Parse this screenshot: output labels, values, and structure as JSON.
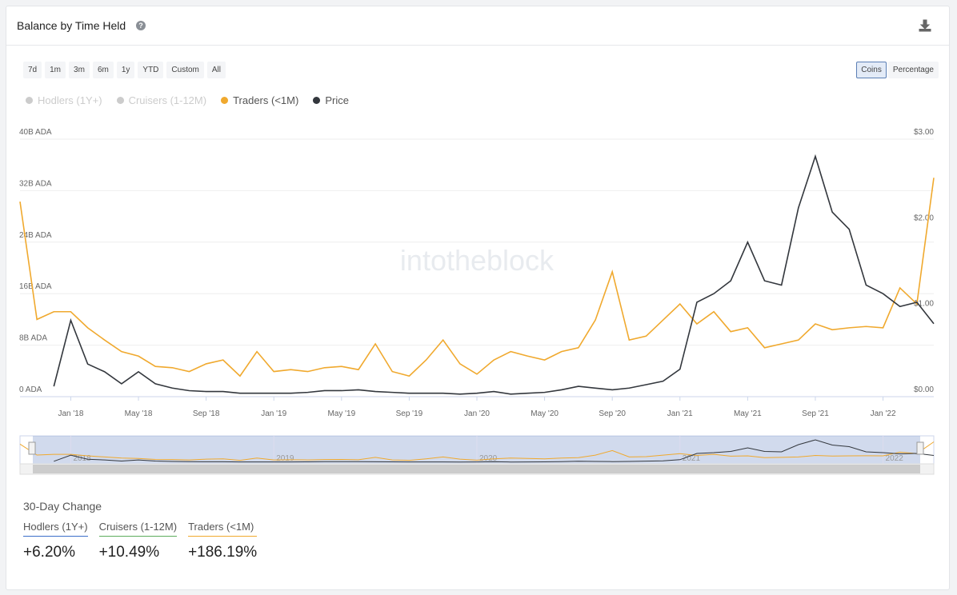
{
  "header": {
    "title": "Balance by Time Held"
  },
  "range_buttons": [
    "7d",
    "1m",
    "3m",
    "6m",
    "1y",
    "YTD",
    "Custom",
    "All"
  ],
  "unit_buttons": [
    "Coins",
    "Percentage"
  ],
  "watermark": "intotheblock",
  "chart_data": {
    "type": "line",
    "legend": [
      {
        "name": "Hodlers (1Y+)",
        "color": "#cccccc"
      },
      {
        "name": "Cruisers (1-12M)",
        "color": "#cccccc"
      }
    ],
    "x": [
      "2017-10",
      "2017-11",
      "2017-12",
      "2018-01",
      "2018-02",
      "2018-03",
      "2018-04",
      "2018-05",
      "2018-06",
      "2018-07",
      "2018-08",
      "2018-09",
      "2018-10",
      "2018-11",
      "2018-12",
      "2019-01",
      "2019-02",
      "2019-03",
      "2019-04",
      "2019-05",
      "2019-06",
      "2019-07",
      "2019-08",
      "2019-09",
      "2019-10",
      "2019-11",
      "2019-12",
      "2020-01",
      "2020-02",
      "2020-03",
      "2020-04",
      "2020-05",
      "2020-06",
      "2020-07",
      "2020-08",
      "2020-09",
      "2020-10",
      "2020-11",
      "2020-12",
      "2021-01",
      "2021-02",
      "2021-03",
      "2021-04",
      "2021-05",
      "2021-06",
      "2021-07",
      "2021-08",
      "2021-09",
      "2021-10",
      "2021-11",
      "2021-12",
      "2022-01",
      "2022-02",
      "2022-03",
      "2022-04"
    ],
    "xlim": [
      "2017-10",
      "2022-04"
    ],
    "xticks": [
      {
        "value": "2018-01",
        "label": "Jan '18"
      },
      {
        "value": "2018-05",
        "label": "May '18"
      },
      {
        "value": "2018-09",
        "label": "Sep '18"
      },
      {
        "value": "2019-01",
        "label": "Jan '19"
      },
      {
        "value": "2019-05",
        "label": "May '19"
      },
      {
        "value": "2019-09",
        "label": "Sep '19"
      },
      {
        "value": "2020-01",
        "label": "Jan '20"
      },
      {
        "value": "2020-05",
        "label": "May '20"
      },
      {
        "value": "2020-09",
        "label": "Sep '20"
      },
      {
        "value": "2021-01",
        "label": "Jan '21"
      },
      {
        "value": "2021-05",
        "label": "May '21"
      },
      {
        "value": "2021-09",
        "label": "Sep '21"
      },
      {
        "value": "2022-01",
        "label": "Jan '22"
      }
    ],
    "ylim": [
      0,
      40000000000
    ],
    "yticks": [
      {
        "value": 0,
        "label": "0 ADA"
      },
      {
        "value": 8000000000,
        "label": "8B ADA"
      },
      {
        "value": 16000000000,
        "label": "16B ADA"
      },
      {
        "value": 24000000000,
        "label": "24B ADA"
      },
      {
        "value": 32000000000,
        "label": "32B ADA"
      },
      {
        "value": 40000000000,
        "label": "40B ADA"
      }
    ],
    "y2lim": [
      0,
      3
    ],
    "y2ticks": [
      {
        "value": 0,
        "label": "$0.00"
      },
      {
        "value": 1,
        "label": "$1.00"
      },
      {
        "value": 2,
        "label": "$2.00"
      },
      {
        "value": 3,
        "label": "$3.00"
      }
    ],
    "grid": true,
    "series": [
      {
        "name": "Traders (<1M)",
        "color": "#f0a92e",
        "values": [
          30300000000,
          12000000000,
          13200000000,
          13200000000,
          10700000000,
          8800000000,
          7000000000,
          6300000000,
          4700000000,
          4500000000,
          3900000000,
          5100000000,
          5700000000,
          3200000000,
          7000000000,
          3900000000,
          4200000000,
          3900000000,
          4500000000,
          4700000000,
          4200000000,
          8200000000,
          3900000000,
          3200000000,
          5700000000,
          8800000000,
          5100000000,
          3500000000,
          5700000000,
          7000000000,
          6300000000,
          5700000000,
          7000000000,
          7600000000,
          11900000000,
          19400000000,
          8800000000,
          9400000000,
          11900000000,
          14400000000,
          11300000000,
          13200000000,
          10100000000,
          10700000000,
          7600000000,
          8200000000,
          8800000000,
          11300000000,
          10400000000,
          10700000000,
          10900000000,
          10700000000,
          16900000000,
          14400000000,
          34000000000
        ]
      },
      {
        "name": "Price",
        "color": "#33373d",
        "axis": "y2",
        "values": [
          null,
          null,
          0.12,
          0.89,
          0.38,
          0.29,
          0.15,
          0.29,
          0.15,
          0.1,
          0.07,
          0.06,
          0.06,
          0.04,
          0.04,
          0.04,
          0.04,
          0.05,
          0.07,
          0.07,
          0.08,
          0.06,
          0.05,
          0.04,
          0.04,
          0.04,
          0.03,
          0.04,
          0.06,
          0.03,
          0.04,
          0.05,
          0.08,
          0.12,
          0.1,
          0.08,
          0.1,
          0.14,
          0.18,
          0.32,
          1.1,
          1.2,
          1.35,
          1.8,
          1.35,
          1.3,
          2.2,
          2.8,
          2.15,
          1.95,
          1.3,
          1.2,
          1.05,
          1.1,
          0.85
        ]
      }
    ],
    "navigator_labels": [
      {
        "value": "2018-01",
        "label": "2018"
      },
      {
        "value": "2019-01",
        "label": "2019"
      },
      {
        "value": "2020-01",
        "label": "2020"
      },
      {
        "value": "2021-01",
        "label": "2021"
      },
      {
        "value": "2022-01",
        "label": "2022"
      }
    ]
  },
  "change": {
    "title": "30-Day Change",
    "items": [
      {
        "label": "Hodlers (1Y+)",
        "value": "+6.20%",
        "color": "#3b6fc9"
      },
      {
        "label": "Cruisers (1-12M)",
        "value": "+10.49%",
        "color": "#5cad5c"
      },
      {
        "label": "Traders (<1M)",
        "value": "+186.19%",
        "color": "#f0a92e"
      }
    ]
  }
}
